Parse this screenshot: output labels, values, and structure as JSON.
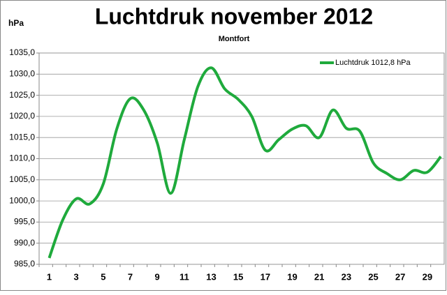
{
  "chart_data": {
    "type": "line",
    "title": "Luchtdruk november 2012",
    "subtitle": "Montfort",
    "y_label": "hPa",
    "categories": [
      1,
      null,
      3,
      null,
      5,
      null,
      7,
      null,
      9,
      null,
      11,
      null,
      13,
      null,
      15,
      null,
      17,
      null,
      19,
      null,
      21,
      null,
      23,
      null,
      25,
      null,
      27,
      null,
      29,
      null
    ],
    "series": [
      {
        "name": "Luchtdruk 1012,8 hPa",
        "color": "#1faa3c",
        "values": [
          986.5,
          995.5,
          1000.5,
          999.3,
          1004,
          1017,
          1024.2,
          1021.5,
          1013.7,
          1001.8,
          1014.5,
          1027,
          1031.5,
          1026.5,
          1024,
          1020,
          1012,
          1014.5,
          1017,
          1017.8,
          1015,
          1021.5,
          1017.2,
          1016.5,
          1009,
          1006.5,
          1005,
          1007.2,
          1006.8,
          1010.5
        ]
      }
    ],
    "ylim": [
      985,
      1035
    ],
    "yticks": [
      {
        "value": 985,
        "label": "985,0"
      },
      {
        "value": 990,
        "label": "990,0"
      },
      {
        "value": 995,
        "label": "995,0"
      },
      {
        "value": 1000,
        "label": "1000,0"
      },
      {
        "value": 1005,
        "label": "1005,0"
      },
      {
        "value": 1010,
        "label": "1010,0"
      },
      {
        "value": 1015,
        "label": "1015,0"
      },
      {
        "value": 1020,
        "label": "1020,0"
      },
      {
        "value": 1025,
        "label": "1025,0"
      },
      {
        "value": 1030,
        "label": "1030,0"
      },
      {
        "value": 1035,
        "label": "1035,0"
      }
    ],
    "grid": true,
    "legend": "top-right"
  }
}
